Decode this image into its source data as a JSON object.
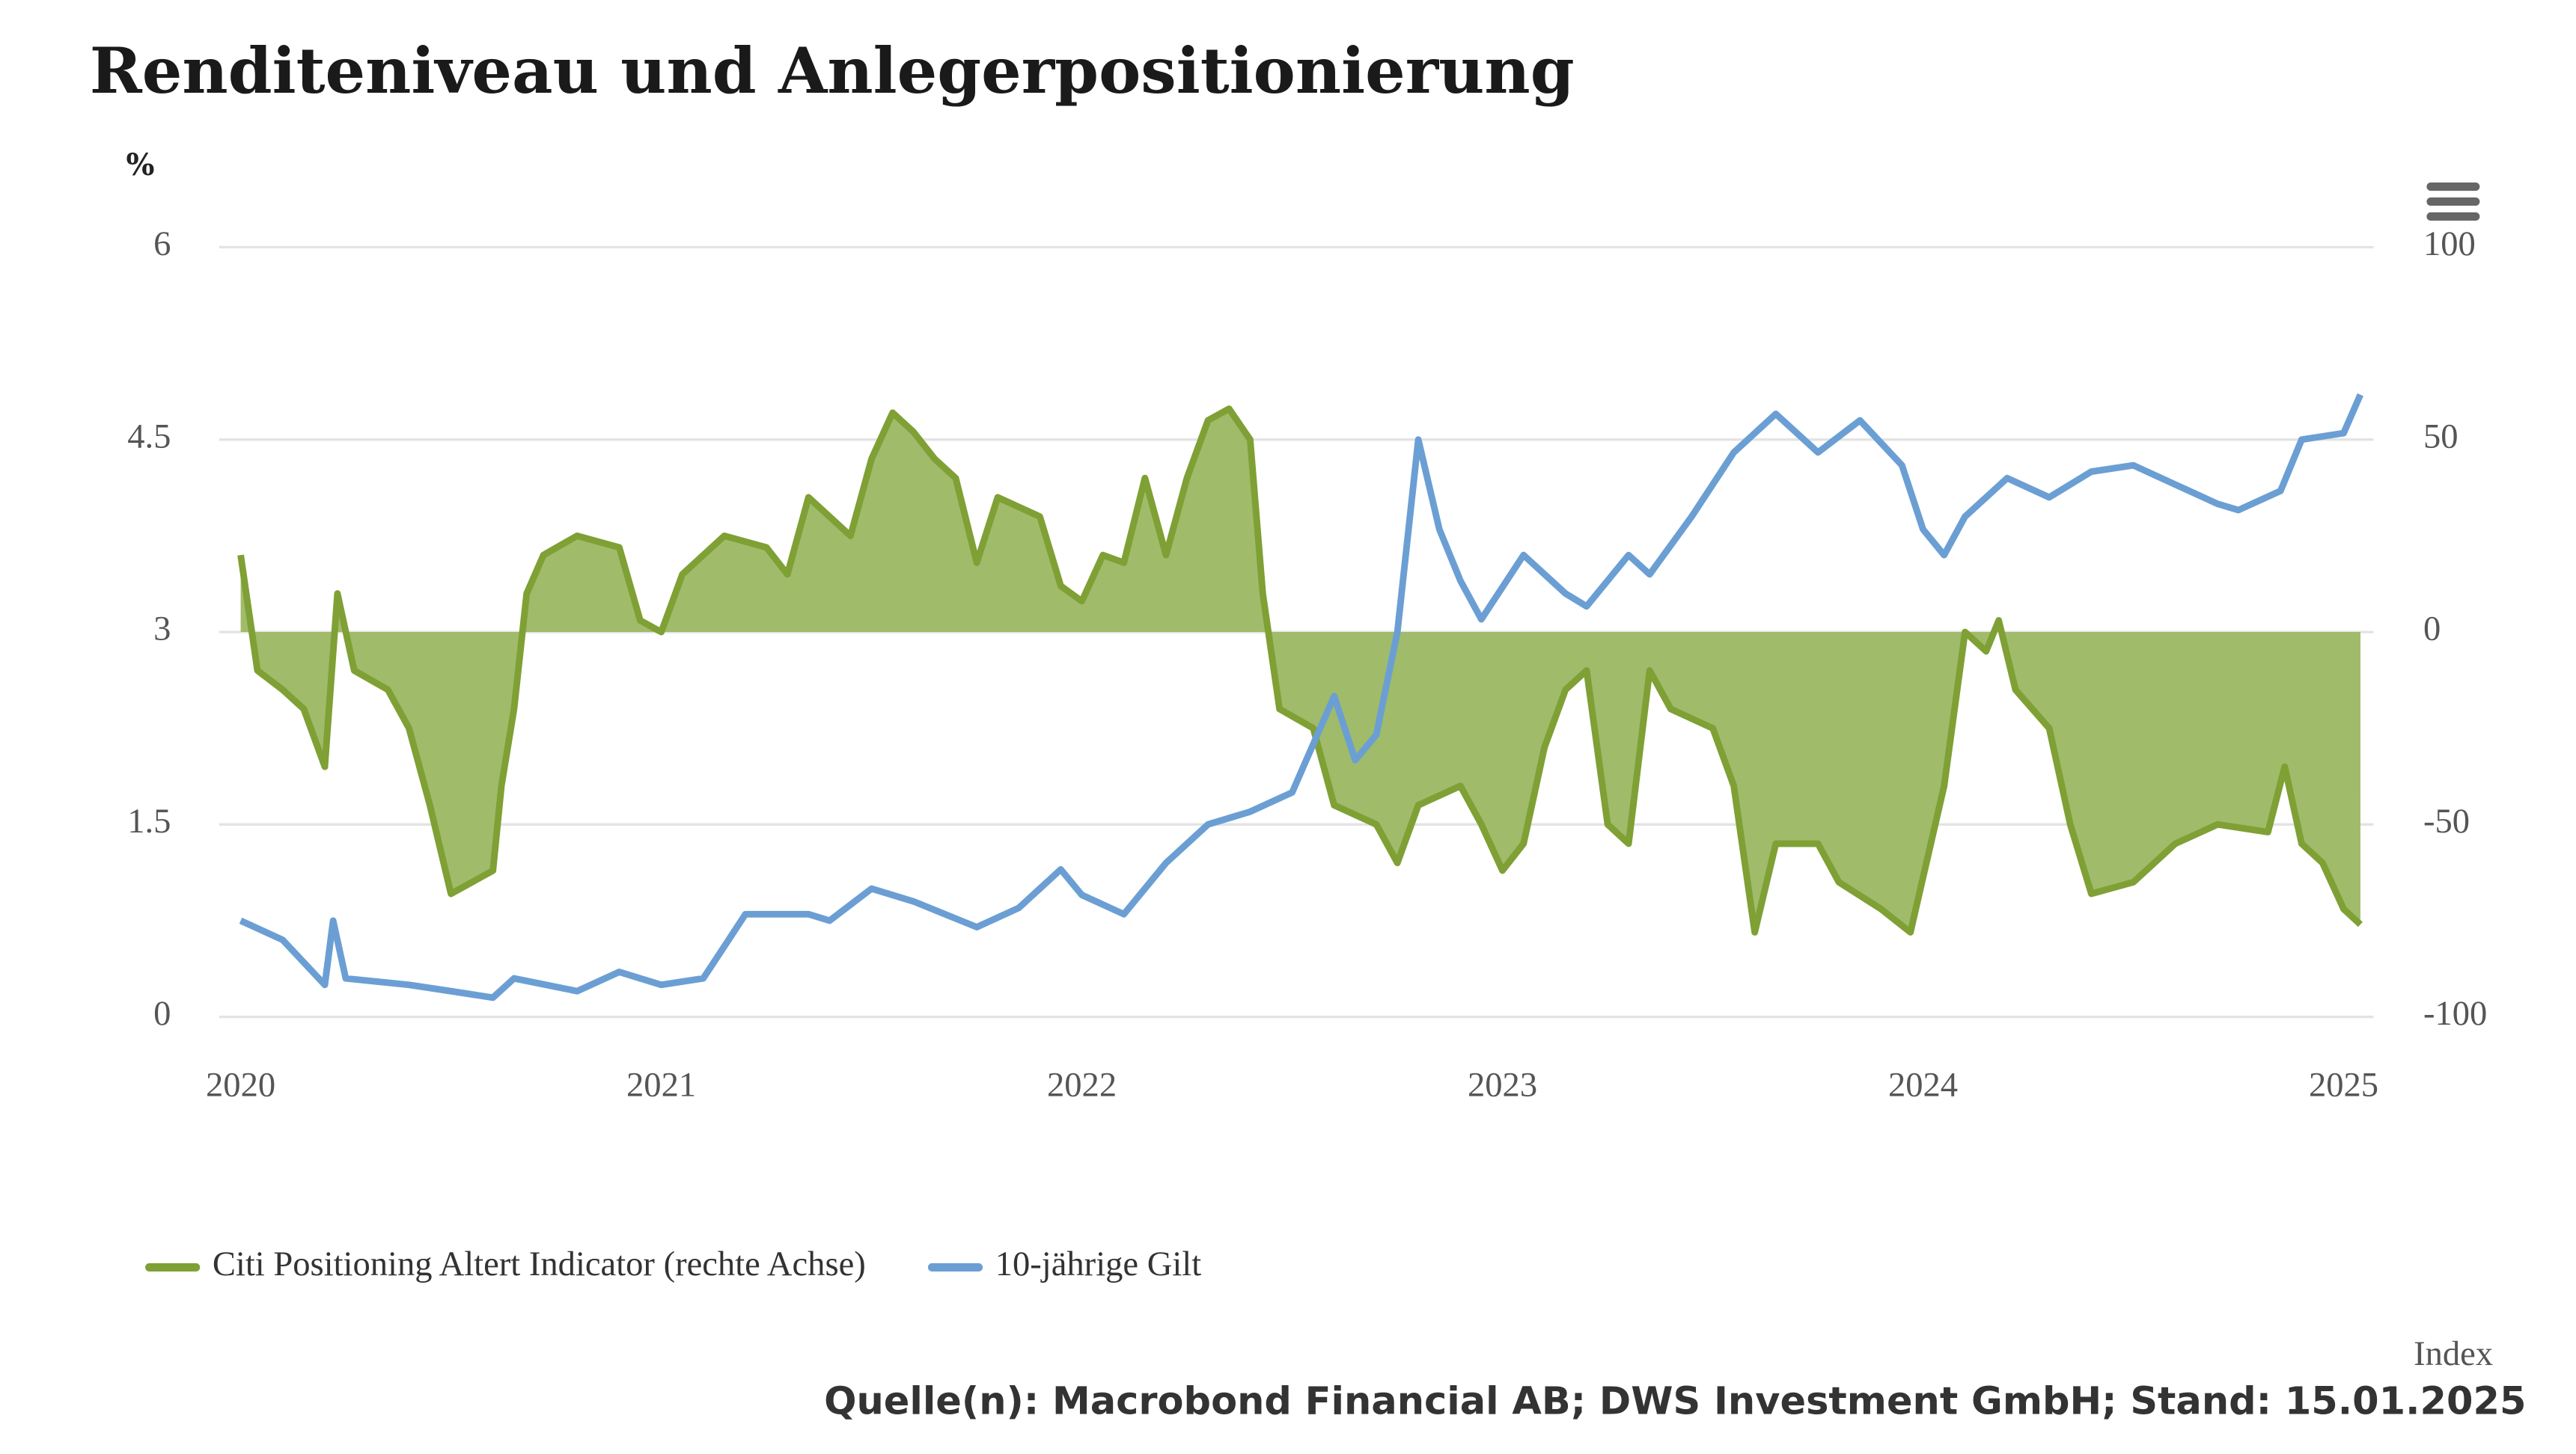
{
  "chart_data": {
    "type": "line",
    "title": "Renditeniveau und Anlegerpositionierung",
    "y_unit": "%",
    "y2_unit": "Index",
    "source": "Quelle(n): Macrobond Financial AB; DWS Investment GmbH; Stand: 15.01.2025",
    "xlim": [
      2020,
      2025.1
    ],
    "xticks": [
      2020,
      2021,
      2022,
      2023,
      2024,
      2025
    ],
    "ylim": [
      0,
      6
    ],
    "yticks": [
      0,
      {
        "value": 1.5,
        "label": "1.5"
      },
      3,
      {
        "value": 4.5,
        "label": "4.5"
      },
      6
    ],
    "y2lim": [
      -100,
      100
    ],
    "y2ticks": [
      -100,
      -50,
      0,
      50,
      100
    ],
    "grid": true,
    "legend": "bottom-left",
    "series": [
      {
        "name": "Citi Positioning Altert Indicator (rechte Achse)",
        "color": "#7fa034",
        "fill": "#a0bb6a",
        "axis": "y2",
        "style": "area",
        "x": [
          2020,
          2020.04,
          2020.1,
          2020.15,
          2020.2,
          2020.23,
          2020.27,
          2020.35,
          2020.4,
          2020.45,
          2020.5,
          2020.55,
          2020.6,
          2020.62,
          2020.65,
          2020.68,
          2020.72,
          2020.8,
          2020.9,
          2020.95,
          2021,
          2021.05,
          2021.15,
          2021.25,
          2021.3,
          2021.35,
          2021.45,
          2021.5,
          2021.55,
          2021.6,
          2021.65,
          2021.7,
          2021.75,
          2021.8,
          2021.9,
          2021.95,
          2022,
          2022.05,
          2022.1,
          2022.15,
          2022.2,
          2022.25,
          2022.3,
          2022.35,
          2022.4,
          2022.43,
          2022.47,
          2022.55,
          2022.6,
          2022.7,
          2022.75,
          2022.8,
          2022.9,
          2022.95,
          2023,
          2023.05,
          2023.1,
          2023.15,
          2023.2,
          2023.25,
          2023.3,
          2023.35,
          2023.4,
          2023.5,
          2023.55,
          2023.6,
          2023.65,
          2023.75,
          2023.8,
          2023.9,
          2023.97,
          2024.05,
          2024.1,
          2024.15,
          2024.18,
          2024.22,
          2024.3,
          2024.35,
          2024.4,
          2024.5,
          2024.6,
          2024.7,
          2024.82,
          2024.86,
          2024.9,
          2024.95,
          2025,
          2025.04
        ],
        "values": [
          20,
          -10,
          -15,
          -20,
          -35,
          10,
          -10,
          -15,
          -25,
          -45,
          -68,
          -65,
          -62,
          -40,
          -20,
          10,
          20,
          25,
          22,
          3,
          0,
          15,
          25,
          22,
          15,
          35,
          25,
          45,
          57,
          52,
          45,
          40,
          18,
          35,
          30,
          12,
          8,
          20,
          18,
          40,
          20,
          40,
          55,
          58,
          50,
          10,
          -20,
          -25,
          -45,
          -50,
          -60,
          -45,
          -40,
          -50,
          -62,
          -55,
          -30,
          -15,
          -10,
          -50,
          -55,
          -10,
          -20,
          -25,
          -40,
          -78,
          -55,
          -55,
          -65,
          -72,
          -78,
          -40,
          0,
          -5,
          3,
          -15,
          -25,
          -50,
          -68,
          -65,
          -55,
          -50,
          -52,
          -35,
          -55,
          -60,
          -72,
          -76
        ]
      },
      {
        "name": "10-jährige Gilt",
        "color": "#6b9fd4",
        "axis": "y",
        "x": [
          2020,
          2020.1,
          2020.2,
          2020.22,
          2020.25,
          2020.4,
          2020.5,
          2020.6,
          2020.65,
          2020.8,
          2020.9,
          2021,
          2021.1,
          2021.15,
          2021.2,
          2021.35,
          2021.4,
          2021.5,
          2021.6,
          2021.75,
          2021.85,
          2021.95,
          2022,
          2022.1,
          2022.2,
          2022.3,
          2022.4,
          2022.5,
          2022.6,
          2022.65,
          2022.7,
          2022.75,
          2022.8,
          2022.85,
          2022.9,
          2022.95,
          2023.05,
          2023.15,
          2023.2,
          2023.3,
          2023.35,
          2023.45,
          2023.55,
          2023.65,
          2023.75,
          2023.85,
          2023.95,
          2024,
          2024.05,
          2024.1,
          2024.2,
          2024.3,
          2024.4,
          2024.5,
          2024.6,
          2024.7,
          2024.75,
          2024.85,
          2024.9,
          2025,
          2025.04
        ],
        "values": [
          0.75,
          0.6,
          0.25,
          0.75,
          0.3,
          0.25,
          0.2,
          0.15,
          0.3,
          0.2,
          0.35,
          0.25,
          0.3,
          0.55,
          0.8,
          0.8,
          0.75,
          1.0,
          0.9,
          0.7,
          0.85,
          1.15,
          0.95,
          0.8,
          1.2,
          1.5,
          1.6,
          1.75,
          2.5,
          2.0,
          2.2,
          3.0,
          4.5,
          3.8,
          3.4,
          3.1,
          3.6,
          3.3,
          3.2,
          3.6,
          3.45,
          3.9,
          4.4,
          4.7,
          4.4,
          4.65,
          4.3,
          3.8,
          3.6,
          3.9,
          4.2,
          4.05,
          4.25,
          4.3,
          4.15,
          4.0,
          3.95,
          4.1,
          4.5,
          4.55,
          4.85
        ]
      }
    ]
  }
}
